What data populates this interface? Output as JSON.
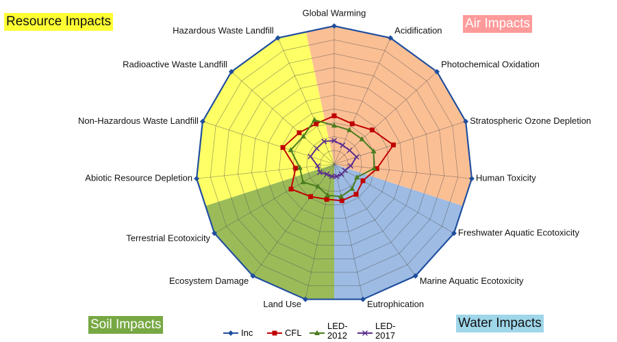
{
  "chart_data": {
    "type": "radar",
    "categories": [
      "Global Warming",
      "Acidification",
      "Photochemical Oxidation",
      "Stratospheric Ozone Depletion",
      "Human Toxicity",
      "Freshwater Aquatic Ecotoxicity",
      "Marine Aquatic Ecotoxicity",
      "Eutrophication",
      "Land Use",
      "Ecosystem Damage",
      "Terrestrial Ecotoxicity",
      "Abiotic Resource Depletion",
      "Non-Hazardous Waste Landfill",
      "Radioactive Waste Landfill",
      "Hazardous Waste Landfill"
    ],
    "series": [
      {
        "name": "Inc",
        "color": "#1f4e9e",
        "marker": "diamond",
        "values": [
          100,
          100,
          100,
          100,
          100,
          100,
          100,
          100,
          100,
          100,
          100,
          100,
          100,
          100,
          100
        ]
      },
      {
        "name": "CFL",
        "color": "#c00000",
        "marker": "square",
        "values": [
          35,
          32,
          37,
          45,
          31,
          24,
          27,
          27,
          26,
          29,
          36,
          28,
          39,
          34,
          32
        ]
      },
      {
        "name": "LED-2012",
        "color": "#4a7d1e",
        "marker": "triangle",
        "values": [
          28,
          27,
          27,
          30,
          29,
          19,
          22,
          24,
          23,
          20,
          26,
          25,
          33,
          30,
          35
        ]
      },
      {
        "name": "LED-2017",
        "color": "#5b2d8e",
        "marker": "x",
        "values": [
          17,
          15,
          15,
          17,
          12,
          9,
          9,
          9,
          9,
          9,
          12,
          12,
          18,
          17,
          18
        ]
      }
    ],
    "ylim": [
      0,
      100
    ],
    "yticks": [
      0,
      10,
      20,
      30,
      40,
      50,
      60,
      70,
      80,
      90,
      100
    ],
    "grid": true,
    "regions": [
      {
        "label": "Air Impacts",
        "color": "#fbbf94",
        "label_color": "#ff9a9a"
      },
      {
        "label": "Water Impacts",
        "color": "#9dbbe3",
        "label_color": "#9fd6ea"
      },
      {
        "label": "Soil Impacts",
        "color": "#9bbb59",
        "label_color": "#77a843"
      },
      {
        "label": "Resource Impacts",
        "color": "#ffff66",
        "label_color": "#ffff33"
      }
    ],
    "legend": "bottom"
  }
}
